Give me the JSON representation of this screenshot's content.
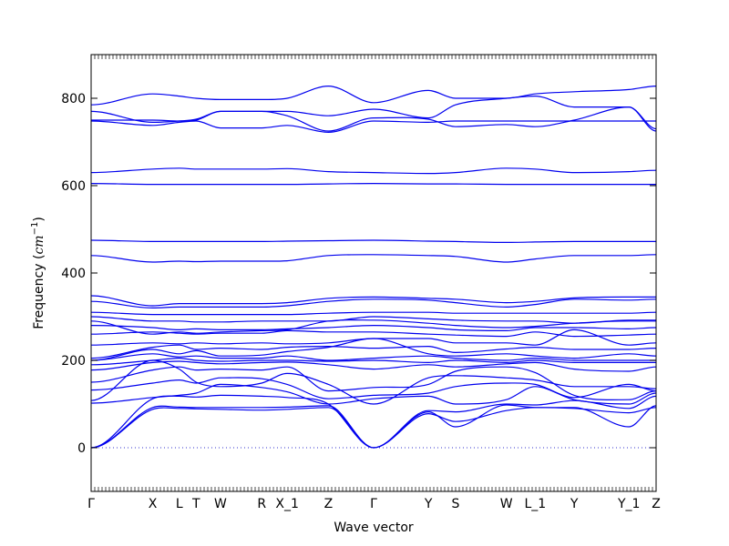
{
  "chart_data": {
    "type": "line",
    "xlabel": "Wave vector",
    "ylabel": "Frequency (",
    "ylabel_math": "cm",
    "ylabel_sup": "−1",
    "ylabel_close": ")",
    "ylim": [
      -100,
      900
    ],
    "yticks": [
      0,
      200,
      400,
      600,
      800
    ],
    "xlim": [
      0,
      1
    ],
    "grid": false,
    "zero_line": true,
    "line_color": "#0000ee",
    "kpoints": [
      {
        "label": "Γ",
        "x": 0.0
      },
      {
        "label": "X",
        "x": 0.109
      },
      {
        "label": "L",
        "x": 0.156
      },
      {
        "label": "T",
        "x": 0.186
      },
      {
        "label": "W",
        "x": 0.229
      },
      {
        "label": "R",
        "x": 0.302
      },
      {
        "label": "X_1",
        "x": 0.347
      },
      {
        "label": "Z",
        "x": 0.42
      },
      {
        "label": "Γ",
        "x": 0.5
      },
      {
        "label": "Y",
        "x": 0.597
      },
      {
        "label": "S",
        "x": 0.645
      },
      {
        "label": "W",
        "x": 0.735
      },
      {
        "label": "L_1",
        "x": 0.786
      },
      {
        "label": "Y",
        "x": 0.855
      },
      {
        "label": "Y_1",
        "x": 0.952
      },
      {
        "label": "Z",
        "x": 1.0
      }
    ],
    "series": [
      {
        "values": [
          0,
          88,
          90,
          89,
          88,
          86,
          88,
          92,
          0,
          78,
          60,
          85,
          92,
          90,
          80,
          92
        ]
      },
      {
        "values": [
          0,
          92,
          93,
          92,
          92,
          92,
          93,
          96,
          0,
          82,
          48,
          98,
          92,
          92,
          48,
          96
        ]
      },
      {
        "values": [
          0,
          112,
          118,
          116,
          120,
          118,
          115,
          100,
          0,
          85,
          82,
          100,
          98,
          108,
          90,
          118
        ]
      },
      {
        "values": [
          102,
          115,
          120,
          125,
          145,
          138,
          128,
          100,
          112,
          118,
          100,
          110,
          140,
          110,
          100,
          125
        ]
      },
      {
        "values": [
          132,
          148,
          155,
          148,
          160,
          158,
          145,
          112,
          120,
          125,
          140,
          148,
          145,
          115,
          145,
          130
        ]
      },
      {
        "values": [
          108,
          200,
          180,
          150,
          140,
          148,
          170,
          145,
          100,
          160,
          165,
          160,
          155,
          140,
          140,
          135
        ]
      },
      {
        "values": [
          150,
          178,
          185,
          178,
          180,
          178,
          185,
          130,
          138,
          145,
          175,
          185,
          172,
          120,
          110,
          130
        ]
      },
      {
        "values": [
          178,
          195,
          198,
          195,
          192,
          195,
          196,
          190,
          180,
          190,
          185,
          192,
          195,
          180,
          175,
          185
        ]
      },
      {
        "values": [
          190,
          200,
          205,
          200,
          198,
          200,
          200,
          198,
          200,
          195,
          200,
          195,
          200,
          195,
          195,
          195
        ]
      },
      {
        "values": [
          200,
          215,
          208,
          210,
          205,
          205,
          210,
          200,
          205,
          210,
          205,
          200,
          205,
          200,
          200,
          200
        ]
      },
      {
        "values": [
          200,
          225,
          215,
          222,
          210,
          212,
          220,
          230,
          250,
          215,
          210,
          215,
          210,
          205,
          215,
          210
        ]
      },
      {
        "values": [
          205,
          230,
          235,
          225,
          228,
          225,
          230,
          232,
          228,
          232,
          218,
          226,
          230,
          225,
          225,
          228
        ]
      },
      {
        "values": [
          235,
          240,
          238,
          240,
          238,
          240,
          238,
          240,
          250,
          250,
          240,
          240,
          235,
          270,
          235,
          240
        ]
      },
      {
        "values": [
          260,
          265,
          262,
          260,
          262,
          262,
          268,
          265,
          265,
          260,
          258,
          255,
          265,
          255,
          258,
          260
        ]
      },
      {
        "values": [
          280,
          275,
          270,
          272,
          270,
          270,
          272,
          275,
          280,
          275,
          270,
          268,
          275,
          275,
          272,
          275
        ]
      },
      {
        "values": [
          290,
          260,
          265,
          262,
          265,
          268,
          270,
          290,
          292,
          285,
          280,
          275,
          278,
          285,
          290,
          290
        ]
      },
      {
        "values": [
          300,
          290,
          290,
          288,
          288,
          290,
          290,
          290,
          300,
          295,
          292,
          290,
          290,
          285,
          292,
          292
        ]
      },
      {
        "values": [
          310,
          305,
          305,
          305,
          305,
          305,
          305,
          308,
          310,
          310,
          308,
          308,
          308,
          308,
          308,
          310
        ]
      },
      {
        "values": [
          335,
          320,
          322,
          322,
          322,
          322,
          325,
          335,
          340,
          338,
          332,
          322,
          328,
          340,
          338,
          340
        ]
      },
      {
        "values": [
          348,
          325,
          330,
          330,
          330,
          330,
          332,
          342,
          345,
          342,
          340,
          332,
          335,
          343,
          345,
          345
        ]
      },
      {
        "values": [
          440,
          425,
          427,
          426,
          427,
          427,
          428,
          440,
          442,
          440,
          438,
          425,
          432,
          440,
          440,
          442
        ]
      },
      {
        "values": [
          475,
          472,
          472,
          472,
          472,
          472,
          473,
          474,
          475,
          473,
          472,
          470,
          471,
          472,
          472,
          472
        ]
      },
      {
        "values": [
          605,
          603,
          603,
          603,
          603,
          603,
          603,
          604,
          605,
          604,
          604,
          603,
          603,
          603,
          603,
          603
        ]
      },
      {
        "values": [
          630,
          638,
          640,
          638,
          638,
          638,
          639,
          632,
          630,
          628,
          630,
          640,
          638,
          630,
          632,
          635
        ]
      },
      {
        "values": [
          748,
          738,
          745,
          748,
          732,
          732,
          738,
          722,
          748,
          745,
          748,
          748,
          748,
          748,
          748,
          748
        ]
      },
      {
        "values": [
          750,
          750,
          748,
          750,
          770,
          770,
          760,
          725,
          755,
          752,
          735,
          740,
          735,
          750,
          780,
          725
        ]
      },
      {
        "values": [
          770,
          745,
          748,
          752,
          770,
          770,
          770,
          760,
          775,
          755,
          785,
          800,
          805,
          780,
          780,
          730
        ]
      },
      {
        "values": [
          785,
          810,
          805,
          800,
          797,
          797,
          800,
          828,
          790,
          818,
          800,
          800,
          810,
          815,
          820,
          828
        ]
      }
    ]
  }
}
